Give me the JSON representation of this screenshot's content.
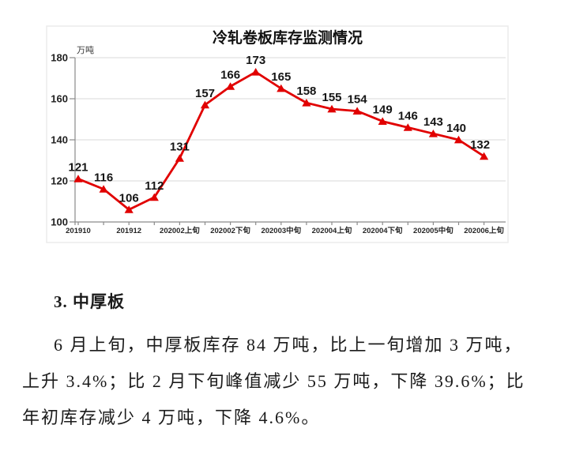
{
  "chart_data": {
    "type": "line",
    "title": "冷轧卷板库存监测情况",
    "ylabel": "万吨",
    "xlabel": "",
    "values": [
      121,
      116,
      106,
      112,
      131,
      157,
      166,
      173,
      165,
      158,
      155,
      154,
      149,
      146,
      143,
      140,
      132
    ],
    "x_tick_labels": [
      "201910",
      "201912",
      "202002上旬",
      "202002下旬",
      "202003中旬",
      "202004上旬",
      "202004下旬",
      "202005中旬",
      "202006上旬"
    ],
    "x_tick_point_indices": [
      0,
      2,
      4,
      6,
      8,
      10,
      12,
      14,
      16
    ],
    "y_ticks": [
      100,
      120,
      140,
      160,
      180
    ],
    "ylim": [
      100,
      180
    ],
    "grid": true,
    "legend": "none",
    "data_labels": true,
    "marker": "triangle-up",
    "line_color": "#e10000"
  },
  "section": {
    "heading": "3. 中厚板",
    "lines": [
      "6 月上旬，中厚板库存 84 万吨，比上一旬增加 3 万吨，",
      "上升 3.4%；比 2 月下旬峰值减少 55 万吨，下降 39.6%；比",
      "年初库存减少 4 万吨，下降 4.6%。"
    ]
  }
}
